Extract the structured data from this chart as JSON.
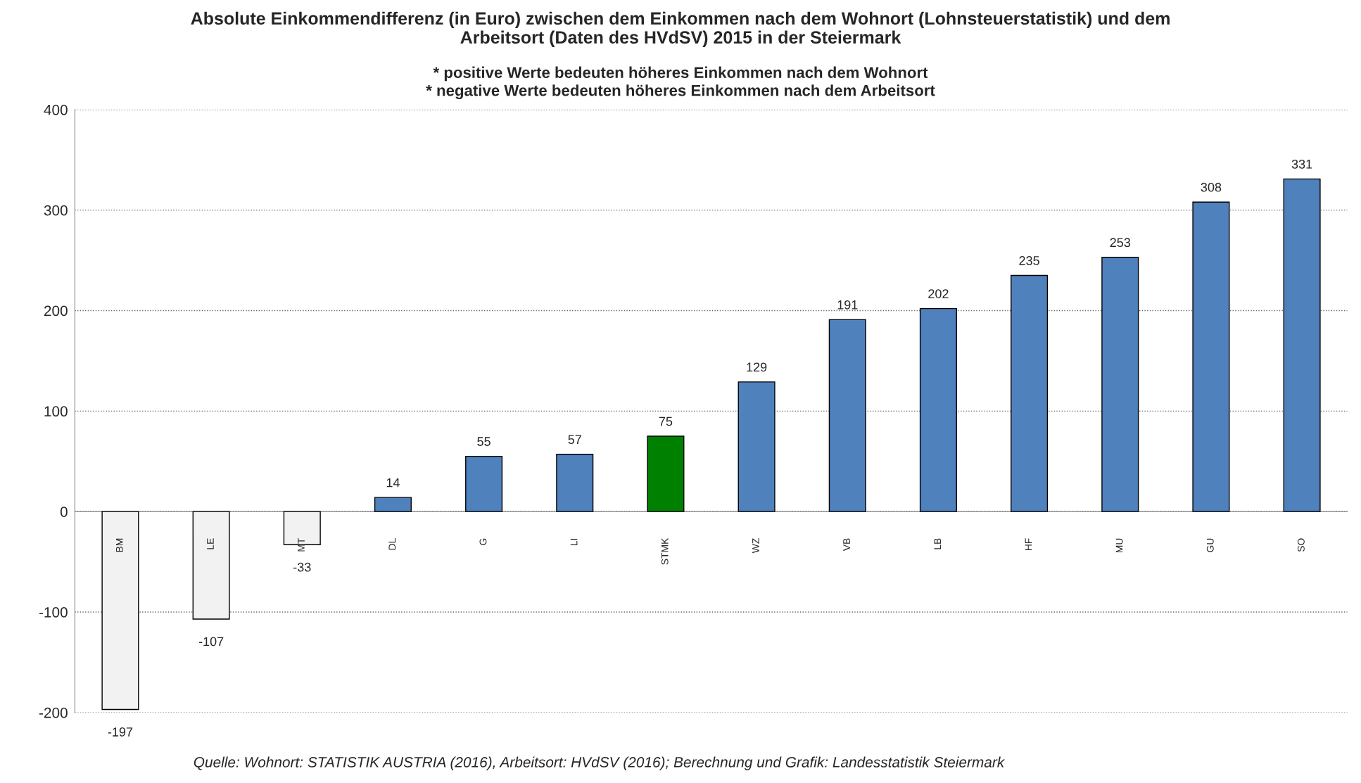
{
  "chart_data": {
    "type": "bar",
    "title": "Absolute Einkommendifferenz (in Euro) zwischen dem Einkommen nach dem Wohnort (Lohnsteuerstatistik) und dem\nArbeitsort (Daten des HVdSV) 2015 in der Steiermark",
    "subtitle": "* positive Werte bedeuten höheres Einkommen nach dem Wohnort\n* negative Werte bedeuten höheres Einkommen nach dem Arbeitsort",
    "categories": [
      "BM",
      "LE",
      "MT",
      "DL",
      "G",
      "LI",
      "STMK",
      "WZ",
      "VB",
      "LB",
      "HF",
      "MU",
      "GU",
      "SO"
    ],
    "values": [
      -197,
      -107,
      -33,
      14,
      55,
      57,
      75,
      129,
      191,
      202,
      235,
      253,
      308,
      331
    ],
    "colors": [
      "#f2f2f2",
      "#f2f2f2",
      "#f2f2f2",
      "#4f81bd",
      "#4f81bd",
      "#4f81bd",
      "#008000",
      "#4f81bd",
      "#4f81bd",
      "#4f81bd",
      "#4f81bd",
      "#4f81bd",
      "#4f81bd",
      "#4f81bd"
    ],
    "data_labels": true,
    "ylim": [
      -200,
      400
    ],
    "yticks": [
      -200,
      -100,
      0,
      100,
      200,
      300,
      400
    ],
    "grid": "y",
    "annotations": [
      "Quelle: Wohnort: STATISTIK AUSTRIA (2016), Arbeitsort: HVdSV (2016); Berechnung und Grafik: Landesstatistik Steiermark"
    ]
  }
}
